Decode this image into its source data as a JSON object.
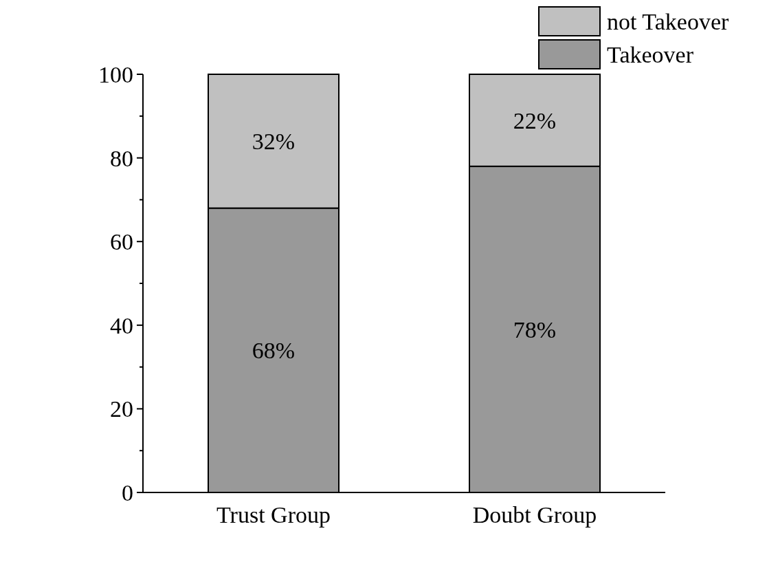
{
  "chart_data": {
    "type": "bar",
    "stacked": true,
    "categories": [
      "Trust Group",
      "Doubt Group"
    ],
    "series": [
      {
        "name": "Takeover",
        "color": "#999999",
        "values": [
          68,
          78
        ],
        "value_labels": [
          "68%",
          "78%"
        ]
      },
      {
        "name": "not Takeover",
        "color": "#c0c0c0",
        "values": [
          32,
          22
        ],
        "value_labels": [
          "32%",
          "22%"
        ]
      }
    ],
    "ylim": [
      0,
      100
    ],
    "yticks": [
      0,
      {
        "value": 10,
        "label": null
      },
      20,
      {
        "value": 30,
        "label": null
      },
      40,
      {
        "value": 50,
        "label": null
      },
      60,
      {
        "value": 70,
        "label": null
      },
      80,
      {
        "value": 90,
        "label": null
      },
      100
    ],
    "legend": "top right"
  }
}
